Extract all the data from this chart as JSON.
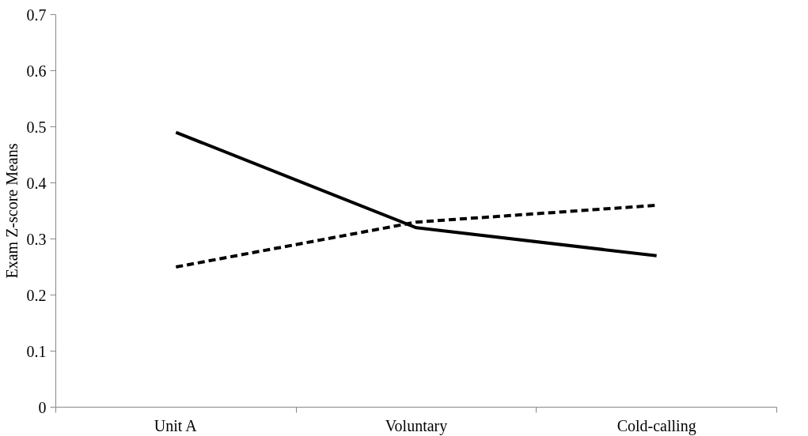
{
  "chart_data": {
    "type": "line",
    "ylabel": "Exam Z-score Means",
    "categories": [
      "Unit A",
      "Voluntary",
      "Cold-calling"
    ],
    "series": [
      {
        "color": "#000000",
        "line_style": "solid",
        "values": [
          0.49,
          0.32,
          0.27
        ]
      },
      {
        "color": "#000000",
        "line_style": "dashed",
        "values": [
          0.25,
          0.33,
          0.36
        ]
      }
    ],
    "ylim": [
      0,
      0.7
    ],
    "yticks": [
      0,
      0.1,
      0.2,
      0.3,
      0.4,
      0.5,
      0.6,
      0.7
    ],
    "grid": false,
    "marker": "none"
  }
}
